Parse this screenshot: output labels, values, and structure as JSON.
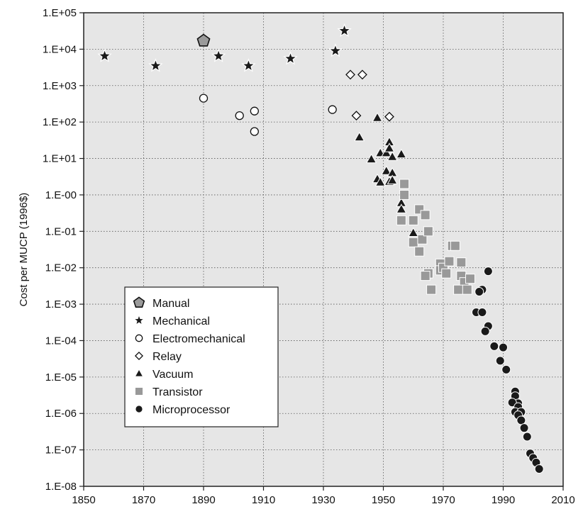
{
  "chart_data": {
    "type": "scatter",
    "ylabel": "Cost per MUCP (1996$)",
    "xlabel": "",
    "xlim": [
      1850,
      2010
    ],
    "x_ticks": [
      "1850",
      "1870",
      "1890",
      "1910",
      "1930",
      "1950",
      "1970",
      "1990",
      "2010"
    ],
    "y_scale": "log",
    "ylim": [
      1e-08,
      100000.0
    ],
    "y_ticks": [
      "1.E+05",
      "1.E+04",
      "1.E+03",
      "1.E+02",
      "1.E+01",
      "1.E-00",
      "1.E-01",
      "1.E-02",
      "1.E-03",
      "1.E-04",
      "1.E-05",
      "1.E-06",
      "1.E-07",
      "1.E-08"
    ],
    "grid": "dotted",
    "legend_position": "lower-left",
    "colors": {
      "plot_bg": "#e6e6e6",
      "black": "#1a1a1a",
      "transistor": "#999999",
      "manual_fill": "#9a9a9a",
      "grid": "#555555"
    },
    "series": [
      {
        "name": "Manual",
        "marker": "pentagon",
        "points": [
          [
            1890,
            17000
          ]
        ]
      },
      {
        "name": "Mechanical",
        "marker": "star",
        "points": [
          [
            1857,
            6500
          ],
          [
            1874,
            3500
          ],
          [
            1895,
            6500
          ],
          [
            1905,
            3500
          ],
          [
            1919,
            5500
          ],
          [
            1934,
            9000
          ],
          [
            1937,
            32000
          ]
        ]
      },
      {
        "name": "Electromechanical",
        "marker": "circle-open",
        "points": [
          [
            1890,
            450
          ],
          [
            1902,
            150
          ],
          [
            1907,
            200
          ],
          [
            1907,
            55
          ],
          [
            1933,
            220
          ]
        ]
      },
      {
        "name": "Relay",
        "marker": "diamond-open",
        "points": [
          [
            1939,
            2000
          ],
          [
            1943,
            2000
          ],
          [
            1941,
            150
          ],
          [
            1952,
            140
          ]
        ]
      },
      {
        "name": "Vacuum",
        "marker": "triangle",
        "points": [
          [
            1948,
            130
          ],
          [
            1942,
            38
          ],
          [
            1946,
            9.5
          ],
          [
            1949,
            14
          ],
          [
            1951,
            4.5
          ],
          [
            1951,
            14
          ],
          [
            1952,
            28
          ],
          [
            1952,
            19
          ],
          [
            1953,
            11
          ],
          [
            1953,
            4
          ],
          [
            1956,
            13
          ],
          [
            1948,
            2.7
          ],
          [
            1949,
            2.2
          ],
          [
            1952,
            2.3
          ],
          [
            1953,
            2.5
          ],
          [
            1956,
            0.6
          ],
          [
            1956,
            0.4
          ],
          [
            1960,
            0.09
          ]
        ]
      },
      {
        "name": "Transistor",
        "marker": "square",
        "points": [
          [
            1957,
            2
          ],
          [
            1957,
            1
          ],
          [
            1956,
            0.2
          ],
          [
            1960,
            0.2
          ],
          [
            1962,
            0.4
          ],
          [
            1964,
            0.28
          ],
          [
            1960,
            0.05
          ],
          [
            1963,
            0.06
          ],
          [
            1965,
            0.1
          ],
          [
            1962,
            0.028
          ],
          [
            1965,
            0.007
          ],
          [
            1964,
            0.006
          ],
          [
            1966,
            0.0025
          ],
          [
            1969,
            0.013
          ],
          [
            1969,
            0.0085
          ],
          [
            1970,
            0.01
          ],
          [
            1971,
            0.007
          ],
          [
            1972,
            0.015
          ],
          [
            1973,
            0.04
          ],
          [
            1974,
            0.04
          ],
          [
            1976,
            0.014
          ],
          [
            1976,
            0.006
          ],
          [
            1977,
            0.004
          ],
          [
            1979,
            0.005
          ],
          [
            1975,
            0.0025
          ],
          [
            1978,
            0.0025
          ]
        ]
      },
      {
        "name": "Microprocessor",
        "marker": "circle-filled",
        "points": [
          [
            1985,
            0.008
          ],
          [
            1983,
            0.0025
          ],
          [
            1982,
            0.0022
          ],
          [
            1981,
            0.0006
          ],
          [
            1983,
            0.0006
          ],
          [
            1985,
            0.00025
          ],
          [
            1984,
            0.00018
          ],
          [
            1987,
            7e-05
          ],
          [
            1990,
            6.5e-05
          ],
          [
            1989,
            2.8e-05
          ],
          [
            1991,
            1.6e-05
          ],
          [
            1994,
            4e-06
          ],
          [
            1994,
            3e-06
          ],
          [
            1995,
            1.9e-06
          ],
          [
            1993,
            2e-06
          ],
          [
            1995,
            1.5e-06
          ],
          [
            1994,
            1.1e-06
          ],
          [
            1996,
            1.1e-06
          ],
          [
            1995,
            9e-07
          ],
          [
            1996,
            6.5e-07
          ],
          [
            1997,
            4e-07
          ],
          [
            1998,
            2.3e-07
          ],
          [
            1999,
            8e-08
          ],
          [
            2000,
            6e-08
          ],
          [
            2001,
            4.5e-08
          ],
          [
            2002,
            3e-08
          ]
        ]
      }
    ]
  }
}
